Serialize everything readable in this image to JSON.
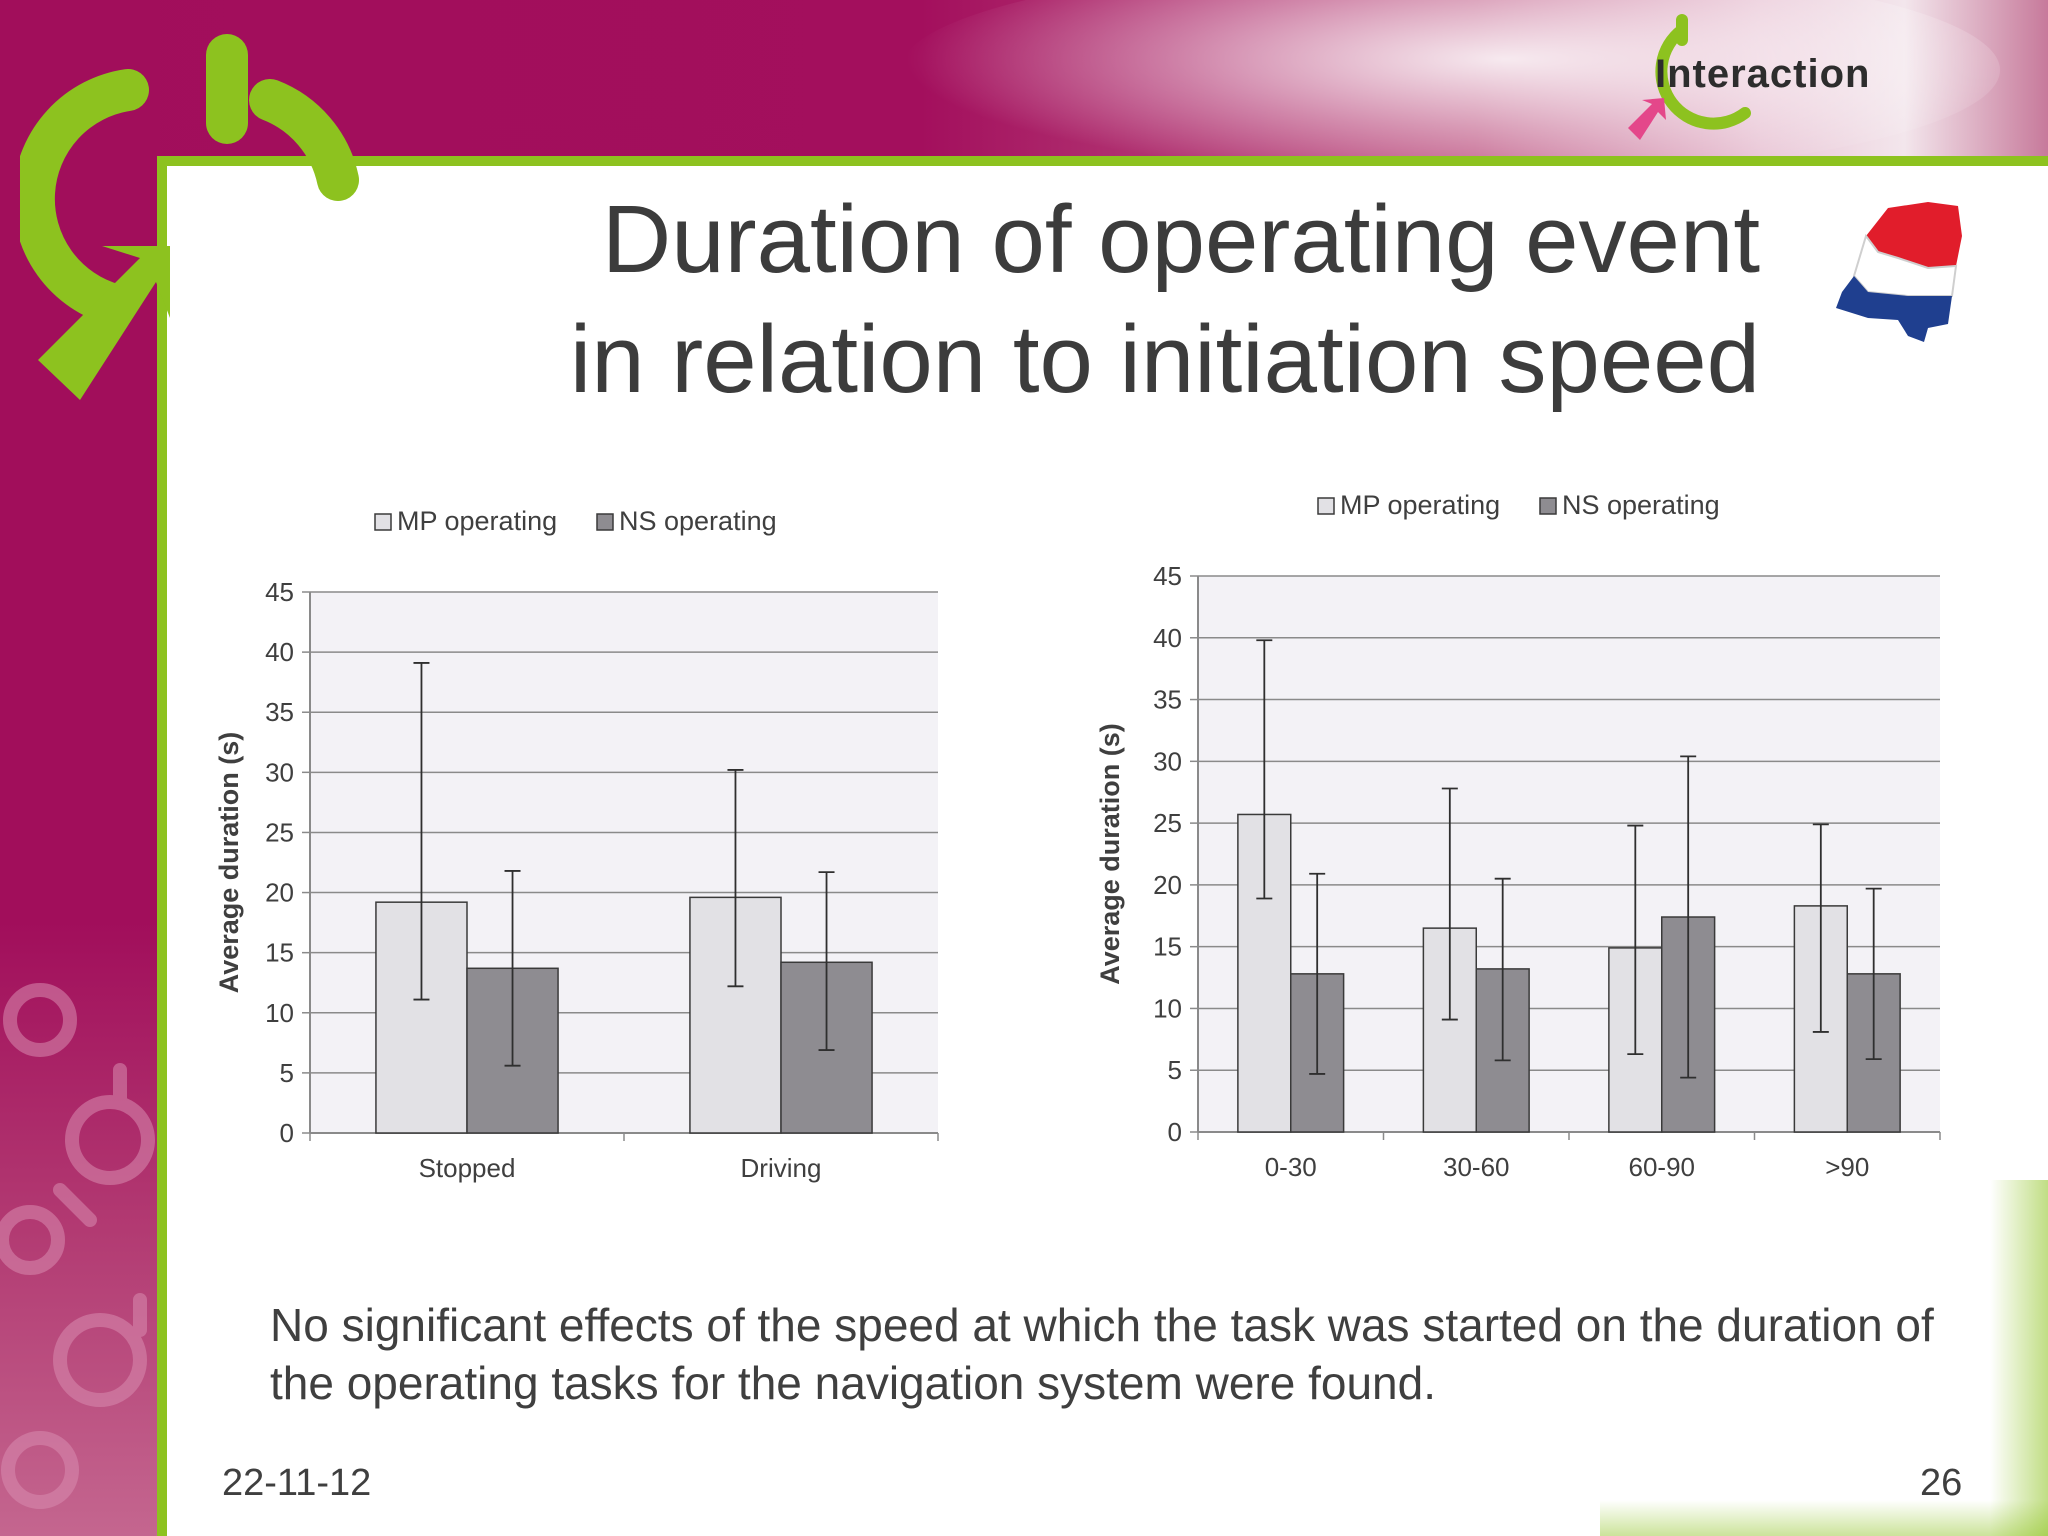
{
  "slide": {
    "title_line1": "Duration of operating event",
    "title_line2": "in relation to initiation speed",
    "bullet": "No significant effects of the speed at which the task was started on the duration of the operating tasks for the navigation system were found.",
    "date": "22-11-12",
    "page_number": "26",
    "logo_text": "Interaction"
  },
  "colors": {
    "magenta": "#a10e5b",
    "green": "#8dc21f",
    "mp_bar": "#e2e1e5",
    "ns_bar": "#8e8c91",
    "plot_bg": "#f3f2f6"
  },
  "chart_data": [
    {
      "type": "bar",
      "categories": [
        "Stopped",
        "Driving"
      ],
      "series": [
        {
          "name": "MP operating",
          "values": [
            19.2,
            19.6
          ],
          "error_low": [
            11.1,
            12.2
          ],
          "error_high": [
            39.1,
            30.2
          ]
        },
        {
          "name": "NS operating",
          "values": [
            13.7,
            14.2
          ],
          "error_low": [
            5.6,
            6.9
          ],
          "error_high": [
            21.8,
            21.7
          ]
        }
      ],
      "ylabel": "Average duration (s)",
      "ylim": [
        0,
        45
      ],
      "yticks": [
        0,
        5,
        10,
        15,
        20,
        25,
        30,
        35,
        40,
        45
      ],
      "grid": true,
      "legend": "top"
    },
    {
      "type": "bar",
      "categories": [
        "0-30",
        "30-60",
        "60-90",
        ">90"
      ],
      "series": [
        {
          "name": "MP operating",
          "values": [
            25.7,
            16.5,
            14.9,
            18.3
          ],
          "error_low": [
            18.9,
            9.1,
            6.3,
            8.1
          ],
          "error_high": [
            39.8,
            27.8,
            24.8,
            24.9
          ]
        },
        {
          "name": "NS operating",
          "values": [
            12.8,
            13.2,
            17.4,
            12.8
          ],
          "error_low": [
            4.7,
            5.8,
            4.4,
            5.9
          ],
          "error_high": [
            20.9,
            20.5,
            30.4,
            19.7
          ]
        }
      ],
      "ylabel": "Average duration (s)",
      "ylim": [
        0,
        45
      ],
      "yticks": [
        0,
        5,
        10,
        15,
        20,
        25,
        30,
        35,
        40,
        45
      ],
      "grid": true,
      "legend": "top"
    }
  ]
}
